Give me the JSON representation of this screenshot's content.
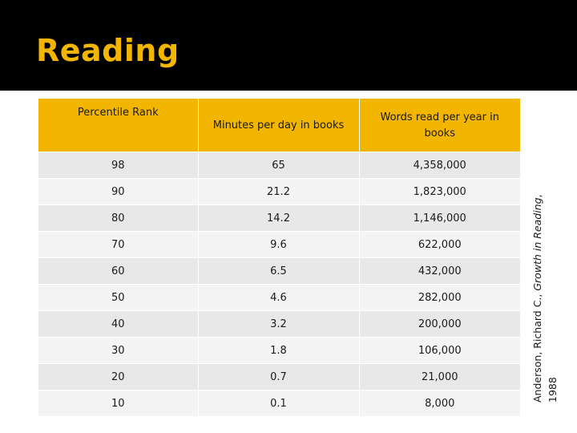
{
  "slide": {
    "title": "Reading"
  },
  "table": {
    "headers": [
      "Percentile Rank",
      "Minutes per day in books",
      "Words read per year in books"
    ],
    "rows": [
      [
        "98",
        "65",
        "4,358,000"
      ],
      [
        "90",
        "21.2",
        "1,823,000"
      ],
      [
        "80",
        "14.2",
        "1,146,000"
      ],
      [
        "70",
        "9.6",
        "622,000"
      ],
      [
        "60",
        "6.5",
        "432,000"
      ],
      [
        "50",
        "4.6",
        "282,000"
      ],
      [
        "40",
        "3.2",
        "200,000"
      ],
      [
        "30",
        "1.8",
        "106,000"
      ],
      [
        "20",
        "0.7",
        "21,000"
      ],
      [
        "10",
        "0.1",
        "8,000"
      ]
    ]
  },
  "citation": {
    "prefix": "Anderson, Richard C., ",
    "work": "Growth in Reading",
    "suffix": ",",
    "year": "1988"
  },
  "colors": {
    "title_band": "#000000",
    "accent": "#f2b500",
    "row_odd": "#e8e8e8",
    "row_even": "#f4f4f4"
  }
}
